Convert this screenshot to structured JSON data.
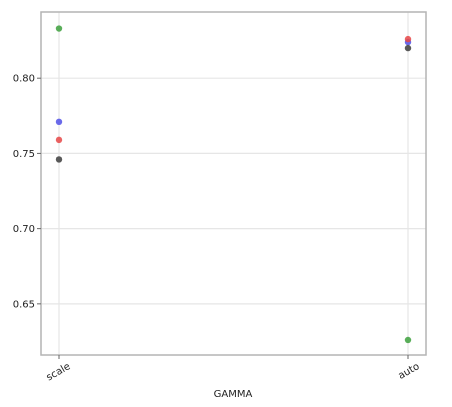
{
  "chart_data": {
    "type": "scatter",
    "title": "",
    "xlabel": "GAMMA",
    "ylabel": "",
    "categories": [
      "scale",
      "auto"
    ],
    "ylim": [
      0.616,
      0.844
    ],
    "yticks": [
      0.65,
      0.7,
      0.75,
      0.8
    ],
    "ytick_labels": [
      "0.65",
      "0.70",
      "0.75",
      "0.80"
    ],
    "grid": true,
    "legend": "none",
    "series": [
      {
        "color": "#3ca03c",
        "values": [
          0.833,
          0.626
        ]
      },
      {
        "color": "#5050e6",
        "values": [
          0.771,
          0.824
        ]
      },
      {
        "color": "#e64646",
        "values": [
          0.759,
          0.826
        ]
      },
      {
        "color": "#3c3c3c",
        "values": [
          0.746,
          0.82
        ]
      }
    ]
  }
}
